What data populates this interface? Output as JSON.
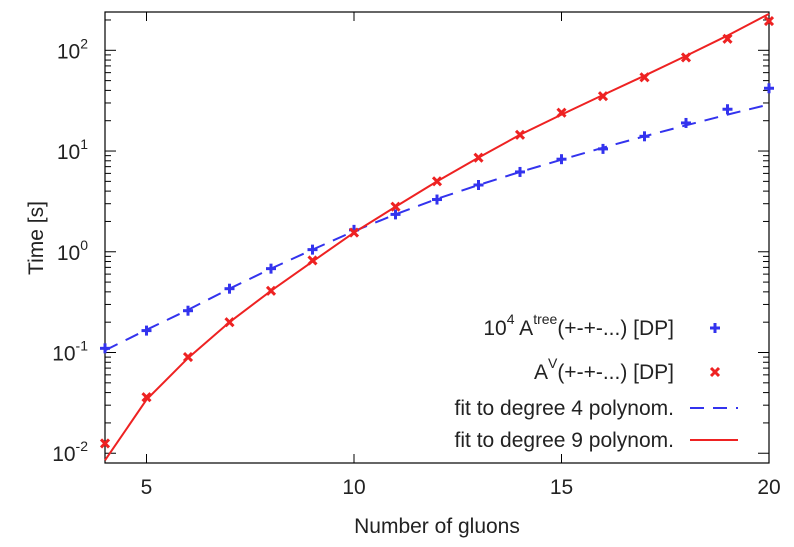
{
  "chart_data": {
    "type": "scatter",
    "title": "",
    "xlabel": "Number of gluons",
    "ylabel": "Time [s]",
    "xlim": [
      4,
      20
    ],
    "ylim": [
      0.008,
      240
    ],
    "yscale": "log",
    "grid": false,
    "legend_position": "bottom-right",
    "x_ticks": [
      {
        "value": 5,
        "label": "5"
      },
      {
        "value": 10,
        "label": "10"
      },
      {
        "value": 15,
        "label": "15"
      },
      {
        "value": 20,
        "label": "20"
      }
    ],
    "y_ticks": [
      {
        "value": 0.01,
        "base": "10",
        "exp": "-2"
      },
      {
        "value": 0.1,
        "base": "10",
        "exp": "-1"
      },
      {
        "value": 1,
        "base": "10",
        "exp": "0"
      },
      {
        "value": 10,
        "base": "10",
        "exp": "1"
      },
      {
        "value": 100,
        "base": "10",
        "exp": "2"
      }
    ],
    "series": [
      {
        "name": "10^4 A^tree(+-+-...) [DP]",
        "legend": {
          "prefix": "10",
          "prefix_sup": "4",
          "main": " A",
          "main_sup": "tree",
          "suffix": "(+-+-...) [DP]"
        },
        "kind": "points",
        "marker": "plus",
        "color": "#3333ee",
        "x": [
          4,
          5,
          6,
          7,
          8,
          9,
          10,
          11,
          12,
          13,
          14,
          15,
          16,
          17,
          18,
          19,
          20
        ],
        "y": [
          0.11,
          0.165,
          0.26,
          0.43,
          0.68,
          1.05,
          1.65,
          2.35,
          3.3,
          4.6,
          6.2,
          8.3,
          10.5,
          14.0,
          19.0,
          26.0,
          42.0
        ]
      },
      {
        "name": "A^V(+-+-...) [DP]",
        "legend": {
          "prefix": "",
          "prefix_sup": "",
          "main": "A",
          "main_sup": "V",
          "suffix": "(+-+-...) [DP]"
        },
        "kind": "points",
        "marker": "cross",
        "color": "#ee2222",
        "x": [
          4,
          5,
          6,
          7,
          8,
          9,
          10,
          11,
          12,
          13,
          14,
          15,
          16,
          17,
          18,
          19,
          20
        ],
        "y": [
          0.0125,
          0.036,
          0.09,
          0.2,
          0.41,
          0.82,
          1.55,
          2.8,
          5.0,
          8.6,
          14.5,
          24.0,
          35.0,
          54.0,
          85.0,
          130.0,
          195.0
        ]
      },
      {
        "name": "fit to degree 4 polynom.",
        "legend": {
          "prefix": "",
          "prefix_sup": "",
          "main": "fit to degree 4 polynom.",
          "main_sup": "",
          "suffix": ""
        },
        "kind": "line",
        "dash": "14,9",
        "color": "#3333ee",
        "x": [
          4,
          5,
          6,
          7,
          8,
          9,
          10,
          11,
          12,
          13,
          14,
          15,
          16,
          17,
          18,
          19,
          20
        ],
        "y": [
          0.105,
          0.168,
          0.265,
          0.43,
          0.68,
          1.05,
          1.6,
          2.35,
          3.35,
          4.6,
          6.2,
          8.2,
          10.8,
          14.0,
          18.0,
          23.0,
          29.0
        ]
      },
      {
        "name": "fit to degree 9 polynom.",
        "legend": {
          "prefix": "",
          "prefix_sup": "",
          "main": "fit to degree 9 polynom.",
          "main_sup": "",
          "suffix": ""
        },
        "kind": "line",
        "dash": "",
        "color": "#ee2222",
        "x": [
          4,
          5,
          6,
          7,
          8,
          9,
          10,
          11,
          12,
          13,
          14,
          15,
          16,
          17,
          18,
          19,
          20
        ],
        "y": [
          0.0085,
          0.034,
          0.088,
          0.2,
          0.41,
          0.8,
          1.55,
          2.8,
          5.0,
          8.6,
          14.5,
          23.0,
          36.0,
          56.0,
          88.0,
          140.0,
          230.0
        ]
      }
    ]
  }
}
